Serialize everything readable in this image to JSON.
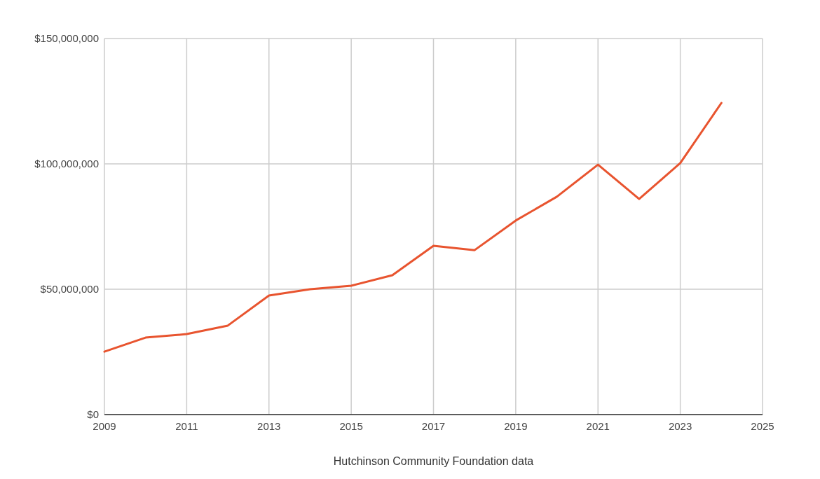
{
  "chart_data": {
    "type": "line",
    "xlabel": "Hutchinson Community Foundation data",
    "x": [
      2009,
      2010,
      2011,
      2012,
      2013,
      2014,
      2015,
      2016,
      2017,
      2018,
      2019,
      2020,
      2021,
      2022,
      2023,
      2024
    ],
    "series": [
      {
        "color": "#e8542f",
        "values": [
          25100000,
          30700000,
          32100000,
          35500000,
          47500000,
          50000000,
          51400000,
          55600000,
          67300000,
          65600000,
          77400000,
          86900000,
          99700000,
          86000000,
          100300000,
          124300000
        ]
      }
    ],
    "xlim": [
      2009,
      2025
    ],
    "xticks": [
      2009,
      2011,
      2013,
      2015,
      2017,
      2019,
      2021,
      2023,
      2025
    ],
    "ylim": [
      0,
      150000000
    ],
    "yticks": [
      {
        "value": 0,
        "label": "$0"
      },
      {
        "value": 50000000,
        "label": "$50,000,000"
      },
      {
        "value": 100000000,
        "label": "$100,000,000"
      },
      {
        "value": 150000000,
        "label": "$150,000,000"
      }
    ],
    "grid": true,
    "marker": "none",
    "line_style": "solid"
  }
}
